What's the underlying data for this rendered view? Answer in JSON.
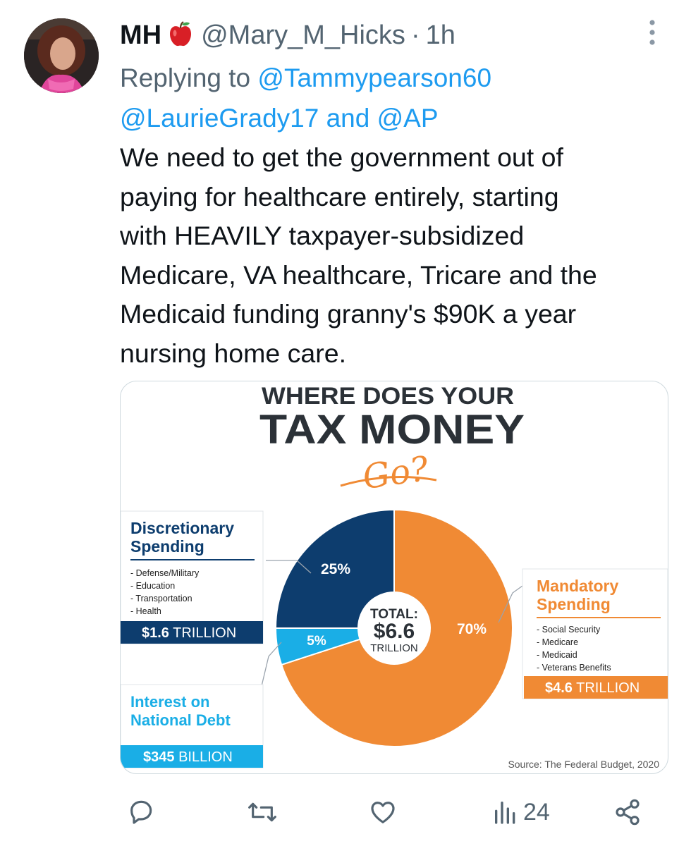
{
  "tweet": {
    "author_name": "MH",
    "author_emoji": "apple-icon",
    "handle": "@Mary_M_Hicks",
    "separator": "·",
    "time": "1h",
    "replying_prefix": "Replying to",
    "reply_user_1": "@Tammypearson60",
    "reply_user_2": "@LaurieGrady17",
    "reply_and": "and",
    "reply_user_3": "@AP",
    "body_lines": [
      "We need to get the government out of",
      "paying for healthcare entirely, starting",
      "with HEAVILY taxpayer-subsidized",
      "Medicare, VA healthcare, Tricare and the",
      "Medicaid funding granny's $90K a year",
      "nursing home care."
    ]
  },
  "infographic": {
    "title_line1": "WHERE DOES YOUR",
    "title_line2": "TAX MONEY",
    "title_script": "Go?",
    "center_label": "TOTAL:",
    "center_value": "$6.6",
    "center_unit": "TRILLION",
    "discretionary": {
      "title1": "Discretionary",
      "title2": "Spending",
      "items": [
        "- Defense/Military",
        "- Education",
        "- Transportation",
        "- Health"
      ],
      "amount_bold": "$1.6",
      "amount_unit": "TRILLION"
    },
    "mandatory": {
      "title1": "Mandatory",
      "title2": "Spending",
      "items": [
        "- Social Security",
        "- Medicare",
        "- Medicaid",
        "- Veterans Benefits"
      ],
      "amount_bold": "$4.6",
      "amount_unit": "TRILLION"
    },
    "interest": {
      "title1": "Interest on",
      "title2": "National Debt",
      "amount_bold": "$345",
      "amount_unit": "BILLION"
    },
    "source": "Source: The Federal Budget, 2020",
    "colors": {
      "navy": "#0d3d6e",
      "orange": "#f08a34",
      "cyan": "#1aaee6",
      "title": "#2b3137"
    }
  },
  "chart_data": {
    "type": "pie",
    "title": "WHERE DOES YOUR TAX MONEY Go?",
    "categories": [
      "Mandatory Spending",
      "Interest on National Debt",
      "Discretionary Spending"
    ],
    "values": [
      70,
      5,
      25
    ],
    "labels": [
      "70%",
      "5%",
      "25%"
    ],
    "colors": [
      "#f08a34",
      "#1aaee6",
      "#0d3d6e"
    ]
  },
  "actions": {
    "reply_icon": "reply-icon",
    "retweet_icon": "retweet-icon",
    "like_icon": "heart-icon",
    "views_icon": "views-icon",
    "views_count": "24",
    "share_icon": "share-icon"
  }
}
